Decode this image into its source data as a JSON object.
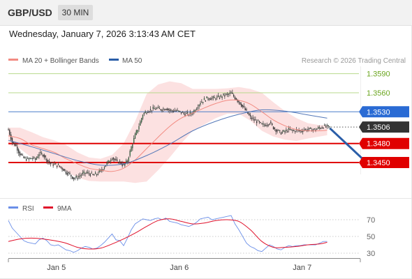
{
  "header": {
    "symbol": "GBP/USD",
    "timeframe": "30 MIN"
  },
  "datetime": "Wednesday, January 7, 2026 3:13:43 AM CET",
  "legend": {
    "ma20_label": "MA 20 + Bollinger Bands",
    "ma50_label": "MA 50",
    "ma20_color": "#f28b82",
    "ma50_color": "#2a5ea8"
  },
  "source": "Research © 2026 Trading Central",
  "rsi_legend": {
    "rsi_label": "RSI",
    "ma9_label": "9MA",
    "rsi_color": "#6b8fe8",
    "ma9_color": "#e0102a"
  },
  "chart_data": [
    {
      "type": "line",
      "ylim": [
        1.3394,
        1.3616
      ],
      "levels": [
        {
          "value": 1.359,
          "label": "1.3590",
          "kind": "resistance"
        },
        {
          "value": 1.356,
          "label": "1.3560",
          "kind": "resistance"
        },
        {
          "value": 1.353,
          "label": "1.3530",
          "kind": "pivot"
        },
        {
          "value": 1.3506,
          "label": "1.3506",
          "kind": "last"
        },
        {
          "value": 1.348,
          "label": "1.3480",
          "kind": "support"
        },
        {
          "value": 1.345,
          "label": "1.3450",
          "kind": "support"
        }
      ],
      "x_ticks": [
        {
          "x": 12.5,
          "label": "Jan 5"
        },
        {
          "x": 44.5,
          "label": "Jan 6"
        },
        {
          "x": 76.5,
          "label": "Jan 7"
        }
      ],
      "x_range": [
        0,
        84
      ],
      "ohlc_anchors": [
        [
          0,
          1.3502
        ],
        [
          1,
          1.3482
        ],
        [
          2,
          1.3476
        ],
        [
          3,
          1.3463
        ],
        [
          4,
          1.3457
        ],
        [
          5,
          1.3455
        ],
        [
          6,
          1.3457
        ],
        [
          7,
          1.3455
        ],
        [
          8,
          1.3464
        ],
        [
          9,
          1.3463
        ],
        [
          10,
          1.3454
        ],
        [
          11,
          1.3448
        ],
        [
          12,
          1.3447
        ],
        [
          13,
          1.3445
        ],
        [
          14,
          1.3441
        ],
        [
          15,
          1.3435
        ],
        [
          16,
          1.3431
        ],
        [
          17,
          1.3425
        ],
        [
          18,
          1.3427
        ],
        [
          19,
          1.3431
        ],
        [
          20,
          1.3434
        ],
        [
          21,
          1.3433
        ],
        [
          22,
          1.343
        ],
        [
          23,
          1.3432
        ],
        [
          24,
          1.3437
        ],
        [
          25,
          1.3444
        ],
        [
          26,
          1.3451
        ],
        [
          27,
          1.3458
        ],
        [
          28,
          1.3452
        ],
        [
          29,
          1.3451
        ],
        [
          30,
          1.3445
        ],
        [
          31,
          1.3453
        ],
        [
          32,
          1.3474
        ],
        [
          33,
          1.3493
        ],
        [
          34,
          1.3508
        ],
        [
          35,
          1.3526
        ],
        [
          36,
          1.3531
        ],
        [
          37,
          1.3533
        ],
        [
          38,
          1.3535
        ],
        [
          39,
          1.3535
        ],
        [
          40,
          1.3534
        ],
        [
          41,
          1.3536
        ],
        [
          42,
          1.3532
        ],
        [
          43,
          1.3532
        ],
        [
          44,
          1.3531
        ],
        [
          45,
          1.3529
        ],
        [
          46,
          1.3527
        ],
        [
          47,
          1.3526
        ],
        [
          48,
          1.3529
        ],
        [
          49,
          1.3537
        ],
        [
          50,
          1.3545
        ],
        [
          51,
          1.3549
        ],
        [
          52,
          1.3552
        ],
        [
          53,
          1.3551
        ],
        [
          54,
          1.3552
        ],
        [
          55,
          1.3553
        ],
        [
          56,
          1.3556
        ],
        [
          57,
          1.3557
        ],
        [
          58,
          1.3559
        ],
        [
          59,
          1.3552
        ],
        [
          60,
          1.3546
        ],
        [
          61,
          1.3538
        ],
        [
          62,
          1.353
        ],
        [
          63,
          1.3521
        ],
        [
          64,
          1.3517
        ],
        [
          65,
          1.3514
        ],
        [
          66,
          1.3509
        ],
        [
          67,
          1.351
        ],
        [
          68,
          1.3513
        ],
        [
          69,
          1.3505
        ],
        [
          70,
          1.35
        ],
        [
          71,
          1.3497
        ],
        [
          72,
          1.3499
        ],
        [
          73,
          1.3502
        ],
        [
          74,
          1.35
        ],
        [
          75,
          1.3501
        ],
        [
          76,
          1.35
        ],
        [
          77,
          1.3502
        ],
        [
          78,
          1.3502
        ],
        [
          79,
          1.3502
        ],
        [
          80,
          1.3502
        ],
        [
          81,
          1.3505
        ],
        [
          82,
          1.3507
        ],
        [
          83,
          1.3506
        ]
      ],
      "ma20": [
        [
          0,
          1.3492
        ],
        [
          3,
          1.3488
        ],
        [
          6,
          1.3478
        ],
        [
          9,
          1.3472
        ],
        [
          12,
          1.3466
        ],
        [
          15,
          1.3456
        ],
        [
          18,
          1.3448
        ],
        [
          21,
          1.3441
        ],
        [
          24,
          1.3438
        ],
        [
          27,
          1.3436
        ],
        [
          30,
          1.3441
        ],
        [
          33,
          1.3454
        ],
        [
          36,
          1.3472
        ],
        [
          39,
          1.349
        ],
        [
          42,
          1.3507
        ],
        [
          45,
          1.352
        ],
        [
          48,
          1.3528
        ],
        [
          51,
          1.3536
        ],
        [
          54,
          1.3543
        ],
        [
          57,
          1.3548
        ],
        [
          60,
          1.3548
        ],
        [
          63,
          1.3542
        ],
        [
          66,
          1.353
        ],
        [
          69,
          1.3517
        ],
        [
          72,
          1.3508
        ],
        [
          75,
          1.3502
        ],
        [
          78,
          1.35
        ],
        [
          81,
          1.35
        ],
        [
          83,
          1.3501
        ]
      ],
      "bb_upper": [
        [
          0,
          1.3505
        ],
        [
          3,
          1.3505
        ],
        [
          6,
          1.3498
        ],
        [
          9,
          1.349
        ],
        [
          12,
          1.3485
        ],
        [
          15,
          1.3478
        ],
        [
          18,
          1.3466
        ],
        [
          21,
          1.3458
        ],
        [
          24,
          1.3456
        ],
        [
          27,
          1.3462
        ],
        [
          30,
          1.348
        ],
        [
          33,
          1.3515
        ],
        [
          36,
          1.3558
        ],
        [
          39,
          1.3573
        ],
        [
          42,
          1.3578
        ],
        [
          45,
          1.3575
        ],
        [
          48,
          1.3566
        ],
        [
          51,
          1.3566
        ],
        [
          54,
          1.3566
        ],
        [
          57,
          1.3567
        ],
        [
          60,
          1.3569
        ],
        [
          63,
          1.3566
        ],
        [
          66,
          1.356
        ],
        [
          69,
          1.3545
        ],
        [
          72,
          1.3531
        ],
        [
          75,
          1.352
        ],
        [
          78,
          1.3512
        ],
        [
          81,
          1.3509
        ],
        [
          83,
          1.3509
        ]
      ],
      "bb_lower": [
        [
          0,
          1.3478
        ],
        [
          3,
          1.3472
        ],
        [
          6,
          1.3458
        ],
        [
          9,
          1.345
        ],
        [
          12,
          1.3445
        ],
        [
          15,
          1.3436
        ],
        [
          18,
          1.3426
        ],
        [
          21,
          1.3421
        ],
        [
          24,
          1.342
        ],
        [
          27,
          1.342
        ],
        [
          30,
          1.342
        ],
        [
          33,
          1.3418
        ],
        [
          36,
          1.342
        ],
        [
          39,
          1.3438
        ],
        [
          42,
          1.3458
        ],
        [
          45,
          1.348
        ],
        [
          48,
          1.35
        ],
        [
          51,
          1.351
        ],
        [
          54,
          1.352
        ],
        [
          57,
          1.3527
        ],
        [
          60,
          1.3527
        ],
        [
          63,
          1.3516
        ],
        [
          66,
          1.35
        ],
        [
          69,
          1.3491
        ],
        [
          72,
          1.3486
        ],
        [
          75,
          1.3484
        ],
        [
          78,
          1.3488
        ],
        [
          81,
          1.3491
        ],
        [
          83,
          1.3493
        ]
      ],
      "ma50": [
        [
          0,
          1.3485
        ],
        [
          6,
          1.3475
        ],
        [
          12,
          1.3464
        ],
        [
          18,
          1.3453
        ],
        [
          24,
          1.3446
        ],
        [
          30,
          1.3448
        ],
        [
          36,
          1.3461
        ],
        [
          42,
          1.3479
        ],
        [
          48,
          1.35
        ],
        [
          54,
          1.3515
        ],
        [
          60,
          1.3526
        ],
        [
          66,
          1.3533
        ],
        [
          72,
          1.3531
        ],
        [
          78,
          1.3525
        ],
        [
          83,
          1.352
        ]
      ],
      "forecast_arrow": {
        "from": [
          83,
          1.3504
        ],
        "to": [
          94,
          1.345
        ]
      }
    },
    {
      "type": "line",
      "ylim": [
        20,
        80
      ],
      "y_ticks": [
        70,
        50,
        30
      ],
      "rsi": [
        [
          0,
          69
        ],
        [
          1,
          60
        ],
        [
          2,
          55
        ],
        [
          3,
          50
        ],
        [
          4,
          45
        ],
        [
          5,
          43
        ],
        [
          6,
          42
        ],
        [
          7,
          41
        ],
        [
          8,
          46
        ],
        [
          9,
          48
        ],
        [
          10,
          45
        ],
        [
          11,
          40
        ],
        [
          12,
          39
        ],
        [
          13,
          40
        ],
        [
          14,
          37
        ],
        [
          15,
          34
        ],
        [
          16,
          33
        ],
        [
          17,
          31
        ],
        [
          18,
          33
        ],
        [
          19,
          36
        ],
        [
          20,
          38
        ],
        [
          21,
          37
        ],
        [
          22,
          35
        ],
        [
          23,
          36
        ],
        [
          24,
          39
        ],
        [
          25,
          43
        ],
        [
          26,
          48
        ],
        [
          27,
          53
        ],
        [
          28,
          46
        ],
        [
          29,
          45
        ],
        [
          30,
          39
        ],
        [
          31,
          48
        ],
        [
          32,
          58
        ],
        [
          33,
          65
        ],
        [
          34,
          68
        ],
        [
          35,
          71
        ],
        [
          36,
          70
        ],
        [
          37,
          69
        ],
        [
          38,
          71
        ],
        [
          39,
          72
        ],
        [
          40,
          70
        ],
        [
          41,
          72
        ],
        [
          42,
          68
        ],
        [
          43,
          67
        ],
        [
          44,
          66
        ],
        [
          45,
          64
        ],
        [
          46,
          63
        ],
        [
          47,
          62
        ],
        [
          48,
          64
        ],
        [
          49,
          67
        ],
        [
          50,
          71
        ],
        [
          51,
          72
        ],
        [
          52,
          73
        ],
        [
          53,
          70
        ],
        [
          54,
          71
        ],
        [
          55,
          72
        ],
        [
          56,
          73
        ],
        [
          57,
          74
        ],
        [
          58,
          75
        ],
        [
          59,
          65
        ],
        [
          60,
          58
        ],
        [
          61,
          50
        ],
        [
          62,
          42
        ],
        [
          63,
          38
        ],
        [
          64,
          36
        ],
        [
          65,
          33
        ],
        [
          66,
          32
        ],
        [
          67,
          36
        ],
        [
          68,
          40
        ],
        [
          69,
          38
        ],
        [
          70,
          35
        ],
        [
          71,
          34
        ],
        [
          72,
          37
        ],
        [
          73,
          39
        ],
        [
          74,
          38
        ],
        [
          75,
          39
        ],
        [
          76,
          39
        ],
        [
          77,
          40
        ],
        [
          78,
          40
        ],
        [
          79,
          40
        ],
        [
          80,
          40
        ],
        [
          81,
          42
        ],
        [
          82,
          44
        ],
        [
          83,
          44
        ]
      ],
      "ma9": [
        [
          0,
          44
        ],
        [
          3,
          47
        ],
        [
          6,
          48
        ],
        [
          9,
          47
        ],
        [
          12,
          45
        ],
        [
          15,
          42
        ],
        [
          18,
          37
        ],
        [
          21,
          35
        ],
        [
          24,
          36
        ],
        [
          27,
          41
        ],
        [
          30,
          47
        ],
        [
          33,
          54
        ],
        [
          36,
          62
        ],
        [
          39,
          69
        ],
        [
          42,
          71
        ],
        [
          45,
          68
        ],
        [
          48,
          65
        ],
        [
          51,
          66
        ],
        [
          54,
          69
        ],
        [
          57,
          70
        ],
        [
          60,
          68
        ],
        [
          63,
          58
        ],
        [
          66,
          44
        ],
        [
          69,
          37
        ],
        [
          72,
          37
        ],
        [
          75,
          38
        ],
        [
          78,
          40
        ],
        [
          81,
          41
        ],
        [
          83,
          43
        ]
      ]
    }
  ]
}
